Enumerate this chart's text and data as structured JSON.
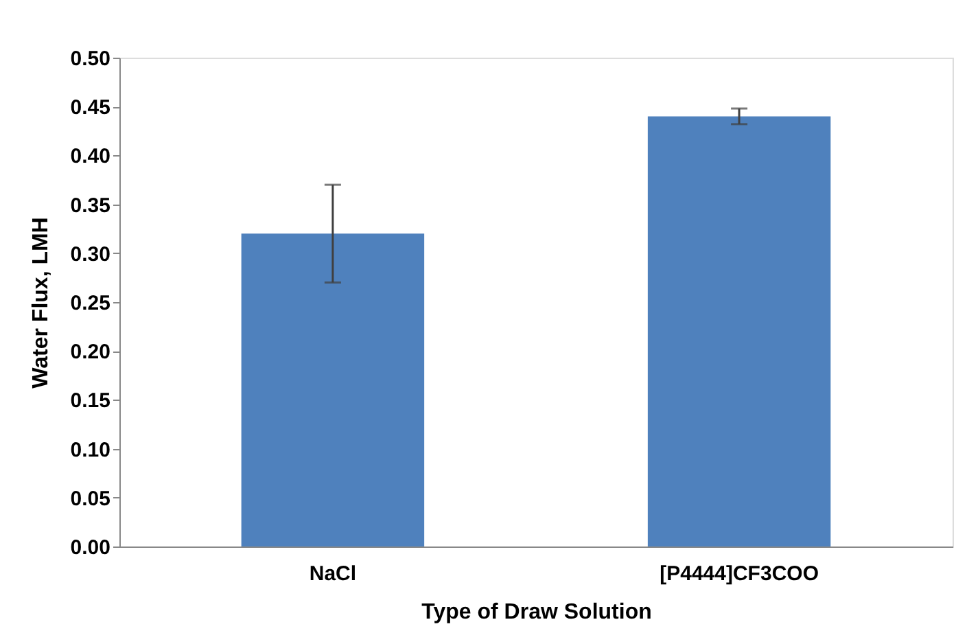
{
  "chart_data": {
    "type": "bar",
    "xlabel": "Type of Draw Solution",
    "ylabel": "Water  Flux, LMH",
    "categories": [
      "NaCl",
      "[P4444]CF3COO"
    ],
    "values": [
      0.32,
      0.44
    ],
    "errors": [
      0.05,
      0.008
    ],
    "color": "#4f81bd",
    "ylim": [
      0,
      0.5
    ],
    "yticks": [
      {
        "value": 0,
        "label": "0.00"
      },
      {
        "value": 0.05,
        "label": "0.05"
      },
      {
        "value": 0.1,
        "label": "0.10"
      },
      {
        "value": 0.15,
        "label": "0.15"
      },
      {
        "value": 0.2,
        "label": "0.20"
      },
      {
        "value": 0.25,
        "label": "0.25"
      },
      {
        "value": 0.3,
        "label": "0.30"
      },
      {
        "value": 0.35,
        "label": "0.35"
      },
      {
        "value": 0.4,
        "label": "0.40"
      },
      {
        "value": 0.45,
        "label": "0.45"
      },
      {
        "value": 0.5,
        "label": "0.50"
      }
    ],
    "grid": false
  }
}
